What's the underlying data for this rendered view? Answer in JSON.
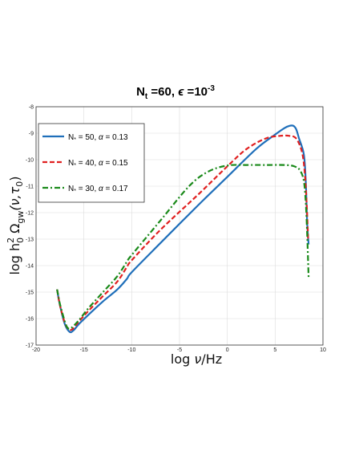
{
  "chart_data": {
    "type": "line",
    "title": "N_t =60, ϵ =10^-3",
    "title_parts": {
      "n": "N",
      "n_sub": "t",
      "rest": " =60, ",
      "eps": "ϵ",
      "eq": " =10",
      "exp": "-3"
    },
    "xlabel": "log ν/Hz",
    "xlabel_parts": {
      "log": "log ",
      "nu": "ν",
      "unit": "/Hz"
    },
    "ylabel": "log h0^2 Ω_gw(ν,τ0)",
    "ylabel_parts": {
      "log": "log h",
      "sup": "2",
      "sub0": "0",
      "omega": " Ω",
      "gw": "gw",
      "args": "(ν,τ",
      "tau_sub": "0",
      "close": ")"
    },
    "xlim": [
      -20,
      10
    ],
    "ylim": [
      -17,
      -8
    ],
    "xticks": [
      -20,
      -15,
      -10,
      -5,
      0,
      5,
      10
    ],
    "yticks": [
      -17,
      -16,
      -15,
      -14,
      -13,
      -12,
      -11,
      -10,
      -9,
      -8
    ],
    "grid": true,
    "legend_position": "upper-left",
    "series": [
      {
        "name": "N* = 50, α = 0.13",
        "name_parts": {
          "n": "N",
          "star": "*",
          "rest": " = 50, ",
          "alpha": "α",
          "val": " = 0.13"
        },
        "color": "#1f6fba",
        "style": "solid",
        "x": [
          -17.8,
          -17.5,
          -17.0,
          -16.5,
          -16.1,
          -15.5,
          -14.5,
          -13.0,
          -11.5,
          -10.5,
          -10.0,
          -7.0,
          -3.0,
          0.0,
          3.0,
          5.0,
          6.0,
          6.5,
          6.9,
          7.2,
          7.5,
          8.0,
          8.2,
          8.35,
          8.5
        ],
        "y": [
          -14.9,
          -15.5,
          -16.2,
          -16.5,
          -16.45,
          -16.2,
          -15.85,
          -15.35,
          -14.9,
          -14.5,
          -14.25,
          -13.15,
          -11.7,
          -10.65,
          -9.6,
          -9.05,
          -8.8,
          -8.72,
          -8.72,
          -8.85,
          -9.2,
          -9.8,
          -10.8,
          -12.4,
          -13.2
        ]
      },
      {
        "name": "N* = 40, α = 0.15",
        "name_parts": {
          "n": "N",
          "star": "*",
          "rest": " = 40, ",
          "alpha": "α",
          "val": " = 0.15"
        },
        "color": "#e02020",
        "style": "dashed",
        "x": [
          -17.8,
          -17.5,
          -17.0,
          -16.6,
          -16.2,
          -15.5,
          -14.5,
          -13.0,
          -11.5,
          -10.5,
          -10.0,
          -7.0,
          -3.0,
          0.0,
          2.0,
          4.0,
          5.5,
          6.5,
          7.2,
          7.8,
          8.1,
          8.3,
          8.45
        ],
        "y": [
          -14.9,
          -15.5,
          -16.15,
          -16.4,
          -16.4,
          -16.1,
          -15.7,
          -15.15,
          -14.6,
          -14.05,
          -13.8,
          -12.65,
          -11.3,
          -10.25,
          -9.6,
          -9.2,
          -9.1,
          -9.1,
          -9.2,
          -9.7,
          -10.5,
          -11.7,
          -13.0
        ]
      },
      {
        "name": "N* = 30, α = 0.17",
        "name_parts": {
          "n": "N",
          "star": "*",
          "rest": " = 30, ",
          "alpha": "α",
          "val": " = 0.17"
        },
        "color": "#1a8a1a",
        "style": "dashdot",
        "x": [
          -17.8,
          -17.5,
          -17.0,
          -16.7,
          -16.3,
          -15.5,
          -14.5,
          -13.0,
          -11.5,
          -10.5,
          -10.0,
          -7.0,
          -4.0,
          -2.0,
          0.0,
          2.0,
          4.0,
          6.0,
          7.0,
          7.6,
          8.0,
          8.2,
          8.35,
          8.5
        ],
        "y": [
          -14.9,
          -15.45,
          -16.1,
          -16.35,
          -16.35,
          -16.05,
          -15.6,
          -15.0,
          -14.4,
          -13.85,
          -13.6,
          -12.3,
          -11.0,
          -10.45,
          -10.22,
          -10.2,
          -10.2,
          -10.2,
          -10.25,
          -10.4,
          -10.8,
          -11.6,
          -12.8,
          -14.45
        ]
      }
    ]
  }
}
